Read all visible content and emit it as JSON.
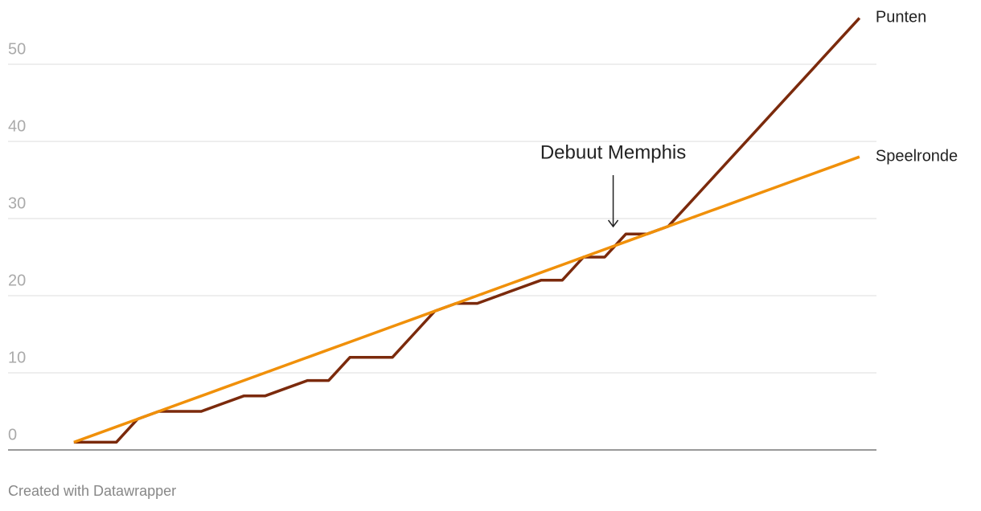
{
  "chart_data": {
    "type": "line",
    "x": [
      1,
      2,
      3,
      4,
      5,
      6,
      7,
      8,
      9,
      10,
      11,
      12,
      13,
      14,
      15,
      16,
      17,
      18,
      19,
      20,
      21,
      22,
      23,
      24,
      25,
      26,
      27,
      28,
      29,
      30,
      31,
      32,
      33,
      34,
      35,
      36,
      37,
      38
    ],
    "xlim": [
      -2.1,
      38.8
    ],
    "series": [
      {
        "name": "Punten",
        "color": "#7b2a0c",
        "values": [
          1,
          1,
          1,
          4,
          5,
          5,
          5,
          6,
          7,
          7,
          8,
          9,
          9,
          12,
          12,
          12,
          15,
          18,
          19,
          19,
          20,
          21,
          22,
          22,
          25,
          25,
          28,
          28,
          29,
          32,
          35,
          38,
          41,
          44,
          47,
          50,
          53,
          56
        ]
      },
      {
        "name": "Speelronde",
        "color": "#f0900a",
        "values": [
          1,
          2,
          3,
          4,
          5,
          6,
          7,
          8,
          9,
          10,
          11,
          12,
          13,
          14,
          15,
          16,
          17,
          18,
          19,
          20,
          21,
          22,
          23,
          24,
          25,
          26,
          27,
          28,
          29,
          30,
          31,
          32,
          33,
          34,
          35,
          36,
          37,
          38
        ]
      }
    ],
    "ylim": [
      0,
      50
    ],
    "yticks": [
      0,
      10,
      20,
      30,
      40,
      50
    ],
    "grid": true,
    "annotation": {
      "text": "Debuut Memphis",
      "x": 26.4
    },
    "footer": "Created with Datawrapper"
  }
}
